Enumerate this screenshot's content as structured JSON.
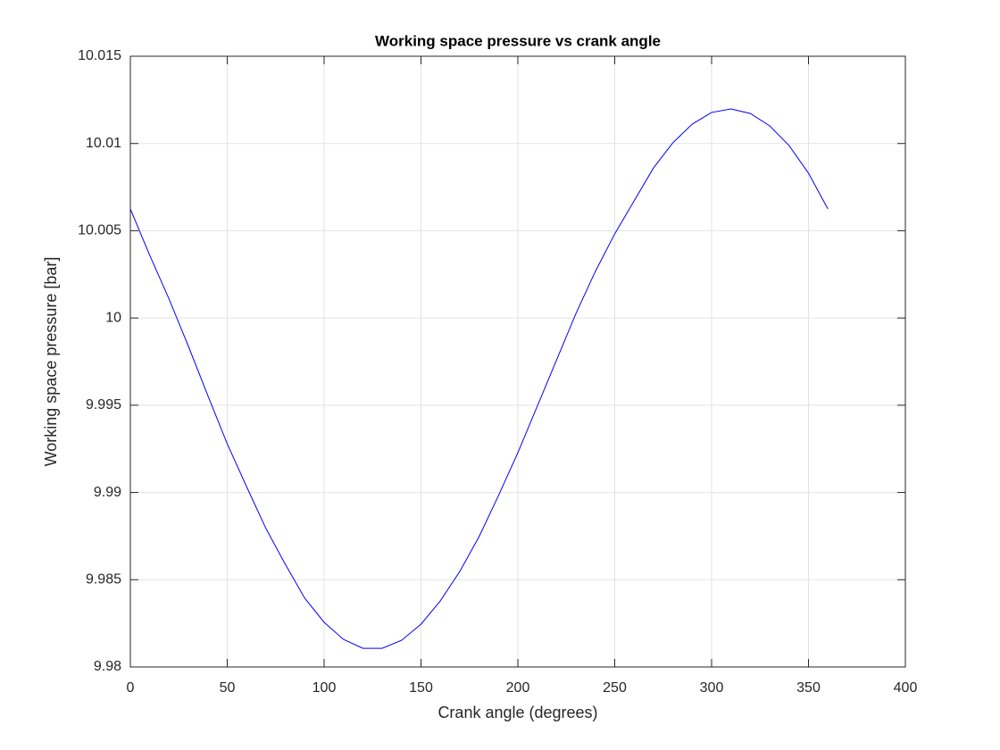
{
  "chart_data": {
    "type": "line",
    "title": "Working space pressure vs crank angle",
    "x_label": "Crank angle (degrees)",
    "y_label": "Working space pressure [bar]",
    "x": [
      0,
      10,
      20,
      30,
      40,
      50,
      60,
      70,
      80,
      90,
      100,
      110,
      120,
      130,
      140,
      150,
      160,
      170,
      180,
      190,
      200,
      210,
      220,
      230,
      240,
      250,
      260,
      270,
      280,
      290,
      300,
      310,
      320,
      330,
      340,
      350,
      360
    ],
    "values": [
      10.00625,
      10.00359,
      10.00108,
      9.99837,
      9.99555,
      9.99279,
      9.99033,
      9.98793,
      9.98588,
      9.98394,
      9.98256,
      9.98158,
      9.98107,
      9.98107,
      9.98153,
      9.98245,
      9.98379,
      9.98547,
      9.98747,
      9.98982,
      9.99228,
      9.99494,
      9.9976,
      10.00026,
      10.00267,
      10.00482,
      10.00671,
      10.0086,
      10.01004,
      10.01111,
      10.01178,
      10.01198,
      10.01172,
      10.01101,
      10.00988,
      10.0083,
      10.00625
    ],
    "color": "#0000ff",
    "xlim": [
      0,
      400
    ],
    "xticks": [
      0,
      50,
      100,
      150,
      200,
      250,
      300,
      350,
      400
    ],
    "ylim": [
      9.98,
      10.015
    ],
    "yticks": [
      9.98,
      9.985,
      9.99,
      9.995,
      10,
      10.005,
      10.01,
      10.015
    ],
    "grid": true
  }
}
